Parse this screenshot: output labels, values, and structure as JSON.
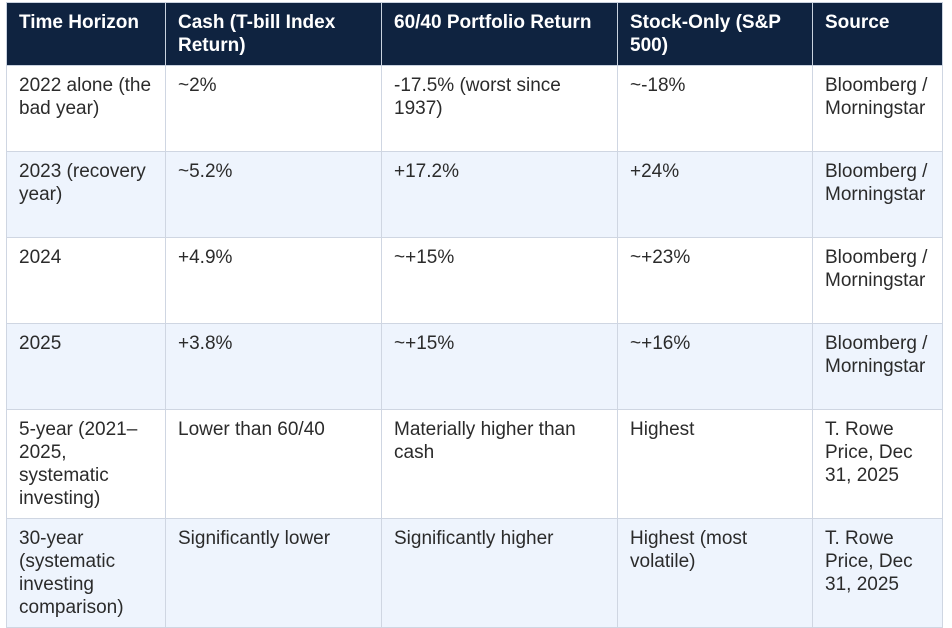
{
  "table": {
    "headers": [
      "Time Horizon",
      "Cash (T-bill Index Return)",
      "60/40 Portfolio Return",
      "Stock-Only (S&P 500)",
      "Source"
    ],
    "rows": [
      [
        "2022 alone (the bad year)",
        "~2%",
        "-17.5% (worst since 1937)",
        "~-18%",
        "Bloomberg / Morningstar"
      ],
      [
        "2023 (recovery year)",
        "~5.2%",
        "+17.2%",
        "+24%",
        "Bloomberg / Morningstar"
      ],
      [
        "2024",
        "+4.9%",
        "~+15%",
        "~+23%",
        "Bloomberg / Morningstar"
      ],
      [
        "2025",
        "+3.8%",
        "~+15%",
        "~+16%",
        "Bloomberg / Morningstar"
      ],
      [
        "5-year (2021–2025, systematic investing)",
        "Lower than 60/40",
        "Materially higher than cash",
        "Highest",
        "T. Rowe Price, Dec 31, 2025"
      ],
      [
        "30-year (systematic investing comparison)",
        "Significantly lower",
        "Significantly higher",
        "Highest (most volatile)",
        "T. Rowe Price, Dec 31, 2025"
      ]
    ]
  },
  "colors": {
    "header_background": "#0f2340",
    "header_text": "#ffffff",
    "stripe_row": "#eef4fd",
    "border": "#cfd6e2"
  }
}
